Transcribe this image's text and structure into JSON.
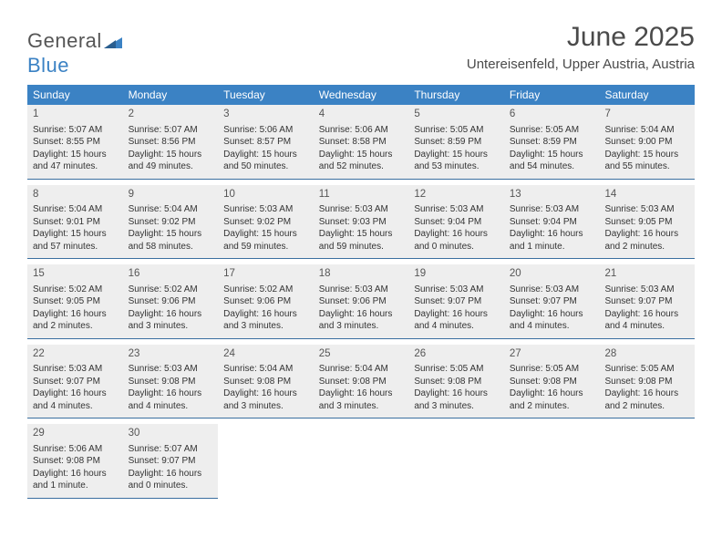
{
  "logo": {
    "word1": "General",
    "word2": "Blue",
    "word1_color": "#666666",
    "word2_color": "#3b82c4"
  },
  "title": "June 2025",
  "location": "Untereisenfeld, Upper Austria, Austria",
  "colors": {
    "header_bg": "#3b82c4",
    "header_text": "#ffffff",
    "cell_bg": "#eeeeee",
    "cell_border": "#3b6fa0",
    "text": "#333333",
    "title_text": "#4a4a4a"
  },
  "typography": {
    "title_fontsize": 30,
    "location_fontsize": 15,
    "dow_fontsize": 12,
    "cell_fontsize": 10
  },
  "days_of_week": [
    "Sunday",
    "Monday",
    "Tuesday",
    "Wednesday",
    "Thursday",
    "Friday",
    "Saturday"
  ],
  "weeks": [
    [
      {
        "day": "1",
        "sunrise": "Sunrise: 5:07 AM",
        "sunset": "Sunset: 8:55 PM",
        "daylight1": "Daylight: 15 hours",
        "daylight2": "and 47 minutes."
      },
      {
        "day": "2",
        "sunrise": "Sunrise: 5:07 AM",
        "sunset": "Sunset: 8:56 PM",
        "daylight1": "Daylight: 15 hours",
        "daylight2": "and 49 minutes."
      },
      {
        "day": "3",
        "sunrise": "Sunrise: 5:06 AM",
        "sunset": "Sunset: 8:57 PM",
        "daylight1": "Daylight: 15 hours",
        "daylight2": "and 50 minutes."
      },
      {
        "day": "4",
        "sunrise": "Sunrise: 5:06 AM",
        "sunset": "Sunset: 8:58 PM",
        "daylight1": "Daylight: 15 hours",
        "daylight2": "and 52 minutes."
      },
      {
        "day": "5",
        "sunrise": "Sunrise: 5:05 AM",
        "sunset": "Sunset: 8:59 PM",
        "daylight1": "Daylight: 15 hours",
        "daylight2": "and 53 minutes."
      },
      {
        "day": "6",
        "sunrise": "Sunrise: 5:05 AM",
        "sunset": "Sunset: 8:59 PM",
        "daylight1": "Daylight: 15 hours",
        "daylight2": "and 54 minutes."
      },
      {
        "day": "7",
        "sunrise": "Sunrise: 5:04 AM",
        "sunset": "Sunset: 9:00 PM",
        "daylight1": "Daylight: 15 hours",
        "daylight2": "and 55 minutes."
      }
    ],
    [
      {
        "day": "8",
        "sunrise": "Sunrise: 5:04 AM",
        "sunset": "Sunset: 9:01 PM",
        "daylight1": "Daylight: 15 hours",
        "daylight2": "and 57 minutes."
      },
      {
        "day": "9",
        "sunrise": "Sunrise: 5:04 AM",
        "sunset": "Sunset: 9:02 PM",
        "daylight1": "Daylight: 15 hours",
        "daylight2": "and 58 minutes."
      },
      {
        "day": "10",
        "sunrise": "Sunrise: 5:03 AM",
        "sunset": "Sunset: 9:02 PM",
        "daylight1": "Daylight: 15 hours",
        "daylight2": "and 59 minutes."
      },
      {
        "day": "11",
        "sunrise": "Sunrise: 5:03 AM",
        "sunset": "Sunset: 9:03 PM",
        "daylight1": "Daylight: 15 hours",
        "daylight2": "and 59 minutes."
      },
      {
        "day": "12",
        "sunrise": "Sunrise: 5:03 AM",
        "sunset": "Sunset: 9:04 PM",
        "daylight1": "Daylight: 16 hours",
        "daylight2": "and 0 minutes."
      },
      {
        "day": "13",
        "sunrise": "Sunrise: 5:03 AM",
        "sunset": "Sunset: 9:04 PM",
        "daylight1": "Daylight: 16 hours",
        "daylight2": "and 1 minute."
      },
      {
        "day": "14",
        "sunrise": "Sunrise: 5:03 AM",
        "sunset": "Sunset: 9:05 PM",
        "daylight1": "Daylight: 16 hours",
        "daylight2": "and 2 minutes."
      }
    ],
    [
      {
        "day": "15",
        "sunrise": "Sunrise: 5:02 AM",
        "sunset": "Sunset: 9:05 PM",
        "daylight1": "Daylight: 16 hours",
        "daylight2": "and 2 minutes."
      },
      {
        "day": "16",
        "sunrise": "Sunrise: 5:02 AM",
        "sunset": "Sunset: 9:06 PM",
        "daylight1": "Daylight: 16 hours",
        "daylight2": "and 3 minutes."
      },
      {
        "day": "17",
        "sunrise": "Sunrise: 5:02 AM",
        "sunset": "Sunset: 9:06 PM",
        "daylight1": "Daylight: 16 hours",
        "daylight2": "and 3 minutes."
      },
      {
        "day": "18",
        "sunrise": "Sunrise: 5:03 AM",
        "sunset": "Sunset: 9:06 PM",
        "daylight1": "Daylight: 16 hours",
        "daylight2": "and 3 minutes."
      },
      {
        "day": "19",
        "sunrise": "Sunrise: 5:03 AM",
        "sunset": "Sunset: 9:07 PM",
        "daylight1": "Daylight: 16 hours",
        "daylight2": "and 4 minutes."
      },
      {
        "day": "20",
        "sunrise": "Sunrise: 5:03 AM",
        "sunset": "Sunset: 9:07 PM",
        "daylight1": "Daylight: 16 hours",
        "daylight2": "and 4 minutes."
      },
      {
        "day": "21",
        "sunrise": "Sunrise: 5:03 AM",
        "sunset": "Sunset: 9:07 PM",
        "daylight1": "Daylight: 16 hours",
        "daylight2": "and 4 minutes."
      }
    ],
    [
      {
        "day": "22",
        "sunrise": "Sunrise: 5:03 AM",
        "sunset": "Sunset: 9:07 PM",
        "daylight1": "Daylight: 16 hours",
        "daylight2": "and 4 minutes."
      },
      {
        "day": "23",
        "sunrise": "Sunrise: 5:03 AM",
        "sunset": "Sunset: 9:08 PM",
        "daylight1": "Daylight: 16 hours",
        "daylight2": "and 4 minutes."
      },
      {
        "day": "24",
        "sunrise": "Sunrise: 5:04 AM",
        "sunset": "Sunset: 9:08 PM",
        "daylight1": "Daylight: 16 hours",
        "daylight2": "and 3 minutes."
      },
      {
        "day": "25",
        "sunrise": "Sunrise: 5:04 AM",
        "sunset": "Sunset: 9:08 PM",
        "daylight1": "Daylight: 16 hours",
        "daylight2": "and 3 minutes."
      },
      {
        "day": "26",
        "sunrise": "Sunrise: 5:05 AM",
        "sunset": "Sunset: 9:08 PM",
        "daylight1": "Daylight: 16 hours",
        "daylight2": "and 3 minutes."
      },
      {
        "day": "27",
        "sunrise": "Sunrise: 5:05 AM",
        "sunset": "Sunset: 9:08 PM",
        "daylight1": "Daylight: 16 hours",
        "daylight2": "and 2 minutes."
      },
      {
        "day": "28",
        "sunrise": "Sunrise: 5:05 AM",
        "sunset": "Sunset: 9:08 PM",
        "daylight1": "Daylight: 16 hours",
        "daylight2": "and 2 minutes."
      }
    ],
    [
      {
        "day": "29",
        "sunrise": "Sunrise: 5:06 AM",
        "sunset": "Sunset: 9:08 PM",
        "daylight1": "Daylight: 16 hours",
        "daylight2": "and 1 minute."
      },
      {
        "day": "30",
        "sunrise": "Sunrise: 5:07 AM",
        "sunset": "Sunset: 9:07 PM",
        "daylight1": "Daylight: 16 hours",
        "daylight2": "and 0 minutes."
      },
      {
        "empty": true
      },
      {
        "empty": true
      },
      {
        "empty": true
      },
      {
        "empty": true
      },
      {
        "empty": true
      }
    ]
  ]
}
